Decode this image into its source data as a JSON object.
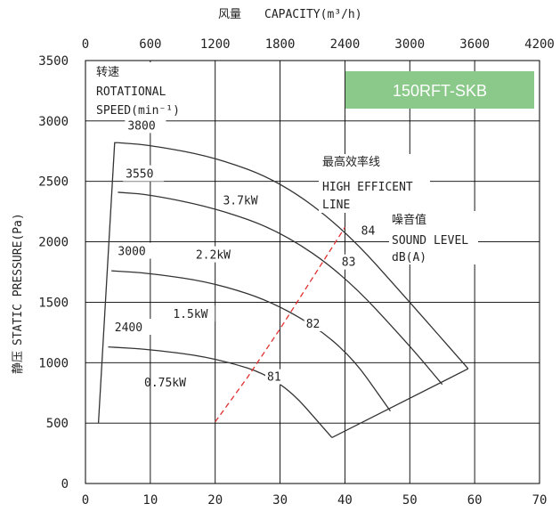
{
  "chart_data": {
    "type": "line",
    "title": "",
    "model_badge": "150RFT-SKB",
    "badge_color": "#8bc98a",
    "top_axis": {
      "label_cn": "风量",
      "label": "CAPACITY(m³/h)",
      "ticks": [
        "0",
        "600",
        "1200",
        "1800",
        "2400",
        "3000",
        "3600",
        "4200"
      ],
      "range": [
        0,
        4200
      ]
    },
    "bottom_axis": {
      "ticks": [
        "0",
        "10",
        "20",
        "30",
        "40",
        "50",
        "60",
        "70"
      ],
      "range": [
        0,
        70
      ]
    },
    "y_axis": {
      "label_cn": "静压",
      "label": "STATIC PRESSURE(Pa)",
      "ticks": [
        "0",
        "500",
        "1000",
        "1500",
        "2000",
        "2500",
        "3000",
        "3500"
      ],
      "range": [
        0,
        3500
      ]
    },
    "speed_header_cn": "转速",
    "speed_header_line1": "ROTATIONAL",
    "speed_header_line2": "SPEED(min⁻¹)",
    "efficiency_cn": "最高效率线",
    "efficiency_line1": "HIGH EFFICENT",
    "efficiency_line2": "LINE",
    "sound_cn": "噪音值",
    "sound_line1": "SOUND LEVEL",
    "sound_line2": "dB(A)",
    "series": [
      {
        "name": "3800",
        "power": "3.7kW",
        "x": [
          5,
          10,
          20,
          30,
          40,
          50,
          59
        ],
        "y": [
          2820,
          2800,
          2700,
          2500,
          2100,
          1500,
          950
        ]
      },
      {
        "name": "3550",
        "power": "",
        "x": [
          5,
          10,
          20,
          30,
          40,
          50,
          55
        ],
        "y": [
          2410,
          2390,
          2280,
          2090,
          1720,
          1140,
          820
        ]
      },
      {
        "name": "3000",
        "power": "2.2kW",
        "x": [
          4,
          10,
          20,
          30,
          40,
          47
        ],
        "y": [
          1760,
          1740,
          1660,
          1480,
          1130,
          600
        ]
      },
      {
        "name": "2400",
        "power": "1.5kW",
        "x": [
          3.5,
          10,
          20,
          30,
          38
        ],
        "y": [
          1130,
          1110,
          1040,
          870,
          380
        ]
      }
    ],
    "curve_hump_label": "0.75kW",
    "efficiency_line": {
      "x": [
        20,
        25,
        30,
        35,
        40
      ],
      "y": [
        510,
        880,
        1280,
        1700,
        2120
      ],
      "color": "#e03030"
    },
    "sound_levels": [
      {
        "label": "84",
        "x": 42.5,
        "y": 2060
      },
      {
        "label": "83",
        "x": 39.5,
        "y": 1800
      },
      {
        "label": "82",
        "x": 34,
        "y": 1290
      },
      {
        "label": "81",
        "x": 28,
        "y": 850
      }
    ]
  }
}
